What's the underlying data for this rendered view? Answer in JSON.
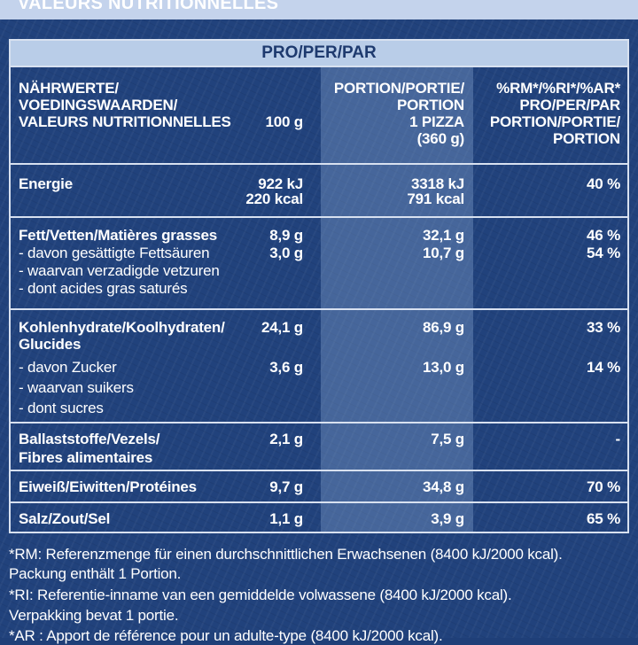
{
  "top_title": "VALEURS NUTRITIONNELLES",
  "header": "PRO/PER/PAR",
  "columns": {
    "nutrient": [
      "NÄHRWERTE/",
      "VOEDINGSWAARDEN/",
      "VALEURS NUTRITIONNELLES"
    ],
    "per100": "100 g",
    "portion": [
      "PORTION/PORTIE/",
      "PORTION",
      "1 PIZZA",
      "(360 g)"
    ],
    "ri": [
      "%RM*/%RI*/%AR*",
      "PRO/PER/PAR",
      "PORTION/PORTIE/",
      "PORTION"
    ]
  },
  "rows": {
    "energy": {
      "label": "Energie",
      "per100": [
        "922 kJ",
        "220 kcal"
      ],
      "portion": [
        "3318 kJ",
        "791 kcal"
      ],
      "ri": "40 %"
    },
    "fat": {
      "label": "Fett/Vetten/Matières grasses",
      "per100": "8,9 g",
      "portion": "32,1 g",
      "ri": "46 %",
      "sub": [
        "- davon gesättigte Fettsäuren",
        "- waarvan verzadigde vetzuren",
        "- dont acides gras saturés"
      ],
      "sub_per100": "3,0 g",
      "sub_portion": "10,7 g",
      "sub_ri": "54 %"
    },
    "carbs": {
      "label": [
        "Kohlenhydrate/Koolhydraten/",
        "Glucides"
      ],
      "per100": "24,1 g",
      "portion": "86,9 g",
      "ri": "33 %",
      "sub": [
        "- davon Zucker",
        "- waarvan suikers",
        "- dont sucres"
      ],
      "sub_per100": "3,6 g",
      "sub_portion": "13,0 g",
      "sub_ri": "14 %"
    },
    "fibre": {
      "label": [
        "Ballaststoffe/Vezels/",
        "Fibres alimentaires"
      ],
      "per100": "2,1 g",
      "portion": "7,5 g",
      "ri": "-"
    },
    "protein": {
      "label": "Eiweiß/Eiwitten/Protéines",
      "per100": "9,7 g",
      "portion": "34,8 g",
      "ri": "70 %"
    },
    "salt": {
      "label": "Salz/Zout/Sel",
      "per100": "1,1 g",
      "portion": "3,9 g",
      "ri": "65 %"
    }
  },
  "footnotes": [
    "*RM: Referenzmenge für einen durchschnittlichen Erwachsenen (8400 kJ/2000 kcal).",
    "Packung enthält 1 Portion.",
    "*RI: Referentie-inname van een gemiddelde volwassene (8400 kJ/2000 kcal).",
    "Verpakking bevat 1 portie.",
    "*AR : Apport de référence pour un adulte-type (8400 kJ/2000 kcal)."
  ]
}
